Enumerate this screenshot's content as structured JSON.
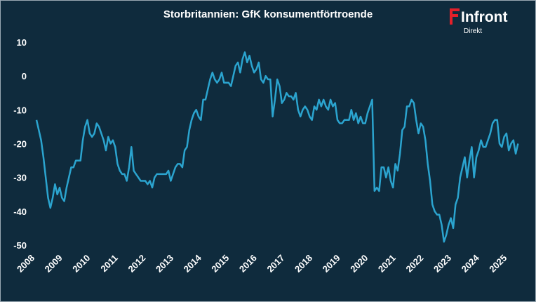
{
  "chart_data": {
    "type": "line",
    "title": "Storbritannien: GfK konsumentförtroende",
    "logo": {
      "name": "Infront",
      "sub": "Direkt"
    },
    "categories": [
      "2008",
      null,
      null,
      null,
      null,
      null,
      null,
      null,
      null,
      null,
      null,
      null,
      "2009",
      null,
      null,
      null,
      null,
      null,
      null,
      null,
      null,
      null,
      null,
      null,
      "2010",
      null,
      null,
      null,
      null,
      null,
      null,
      null,
      null,
      null,
      null,
      null,
      "2011",
      null,
      null,
      null,
      null,
      null,
      null,
      null,
      null,
      null,
      null,
      null,
      "2012",
      null,
      null,
      null,
      null,
      null,
      null,
      null,
      null,
      null,
      null,
      null,
      "2013",
      null,
      null,
      null,
      null,
      null,
      null,
      null,
      null,
      null,
      null,
      null,
      "2014",
      null,
      null,
      null,
      null,
      null,
      null,
      null,
      null,
      null,
      null,
      null,
      "2015",
      null,
      null,
      null,
      null,
      null,
      null,
      null,
      null,
      null,
      null,
      null,
      "2016",
      null,
      null,
      null,
      null,
      null,
      null,
      null,
      null,
      null,
      null,
      null,
      "2017",
      null,
      null,
      null,
      null,
      null,
      null,
      null,
      null,
      null,
      null,
      null,
      "2018",
      null,
      null,
      null,
      null,
      null,
      null,
      null,
      null,
      null,
      null,
      null,
      "2019",
      null,
      null,
      null,
      null,
      null,
      null,
      null,
      null,
      null,
      null,
      null,
      "2020",
      null,
      null,
      null,
      null,
      null,
      null,
      null,
      null,
      null,
      null,
      null,
      "2021",
      null,
      null,
      null,
      null,
      null,
      null,
      null,
      null,
      null,
      null,
      null,
      "2022",
      null,
      null,
      null,
      null,
      null,
      null,
      null,
      null,
      null,
      null,
      null,
      "2023",
      null,
      null,
      null,
      null,
      null,
      null,
      null,
      null,
      null,
      null,
      null,
      "2024",
      null,
      null,
      null,
      null,
      null,
      null,
      null,
      null,
      null,
      null,
      null,
      "2025",
      null,
      null,
      null,
      null
    ],
    "series": [
      {
        "name": "GfK",
        "color": "#2ba4cf",
        "values": [
          -13,
          -16,
          -19,
          -24,
          -30,
          -36,
          -39,
          -36,
          -32,
          -35,
          -33,
          -36,
          -37,
          -33,
          -30,
          -27,
          -27,
          -25,
          -25,
          -25,
          -19,
          -15,
          -13,
          -17,
          -18,
          -17,
          -14,
          -15,
          -17,
          -19,
          -22,
          -18,
          -20,
          -19,
          -21,
          -26,
          -28,
          -29,
          -29,
          -31,
          -27,
          -21,
          -28,
          -29,
          -30,
          -31,
          -31,
          -31,
          -32,
          -31,
          -33,
          -30,
          -29,
          -29,
          -29,
          -29,
          -29,
          -28,
          -31,
          -29,
          -27,
          -26,
          -26,
          -27,
          -22,
          -21,
          -16,
          -13,
          -11,
          -10,
          -12,
          -13,
          -7,
          -7,
          -4,
          -1,
          1,
          -1,
          -2,
          -1,
          1,
          -2,
          -2,
          -2,
          -3,
          0,
          3,
          4,
          1,
          5,
          7,
          4,
          6,
          3,
          1,
          2,
          4,
          -1,
          -2,
          0,
          -1,
          -1,
          -12,
          -7,
          -1,
          -3,
          -8,
          -7,
          -5,
          -6,
          -6,
          -7,
          -5,
          -10,
          -12,
          -10,
          -9,
          -10,
          -12,
          -13,
          -9,
          -10,
          -7,
          -9,
          -7,
          -9,
          -10,
          -7,
          -9,
          -8,
          -13,
          -14,
          -14,
          -13,
          -13,
          -13,
          -10,
          -13,
          -11,
          -14,
          -12,
          -14,
          -14,
          -11,
          -9,
          -7,
          -34,
          -33,
          -34,
          -27,
          -27,
          -30,
          -27,
          -31,
          -33,
          -26,
          -28,
          -23,
          -16,
          -15,
          -9,
          -9,
          -7,
          -8,
          -13,
          -17,
          -14,
          -15,
          -19,
          -26,
          -31,
          -38,
          -40,
          -41,
          -41,
          -44,
          -49,
          -47,
          -44,
          -42,
          -45,
          -38,
          -36,
          -30,
          -27,
          -24,
          -30,
          -25,
          -21,
          -30,
          -24,
          -22,
          -19,
          -21,
          -21,
          -19,
          -17,
          -14,
          -13,
          -13,
          -20,
          -21,
          -18,
          -17,
          -22,
          -20,
          -19,
          -23,
          -20
        ]
      }
    ],
    "ylim": [
      -50,
      10
    ],
    "yticks": [
      -50,
      -40,
      -30,
      -20,
      -10,
      0,
      10
    ]
  }
}
